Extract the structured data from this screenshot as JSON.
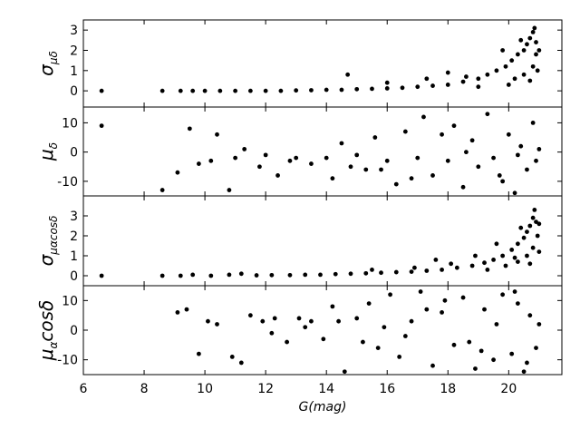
{
  "chart_data": [
    {
      "type": "scatter",
      "ylabel": [
        {
          "text": "σ"
        },
        {
          "text": "μδ",
          "sub": true
        }
      ],
      "color": "#000000",
      "xlim": [
        6,
        21.75
      ],
      "ylim": [
        -0.8,
        3.5
      ],
      "yticks": [
        0,
        1,
        2,
        3
      ],
      "x": [
        6.6,
        8.6,
        9.2,
        9.6,
        10,
        10.5,
        11,
        11.5,
        12,
        12.5,
        13,
        13.5,
        14,
        14.5,
        15,
        15.5,
        16,
        16.5,
        17,
        17.5,
        18,
        18.5,
        19,
        19.3,
        19.6,
        19.9,
        20.1,
        20.3,
        20.5,
        20.6,
        20.7,
        20.8,
        20.85,
        20.9,
        20.9,
        20.8,
        20.5,
        20.2,
        18.6,
        14.7,
        17.3,
        19.8,
        20.4,
        20.95,
        20,
        19,
        16,
        18,
        21,
        20.7
      ],
      "values": [
        0,
        0,
        0,
        0,
        0,
        0,
        0,
        0,
        0,
        0,
        0.02,
        0.03,
        0.05,
        0.05,
        0.08,
        0.1,
        0.12,
        0.15,
        0.2,
        0.25,
        0.3,
        0.45,
        0.6,
        0.8,
        1.0,
        1.2,
        1.5,
        1.8,
        2.0,
        2.3,
        2.6,
        2.9,
        3.1,
        2.4,
        1.8,
        1.2,
        0.8,
        0.6,
        0.7,
        0.8,
        0.6,
        2.0,
        2.5,
        1.0,
        0.3,
        0.2,
        0.4,
        0.9,
        2.0,
        0.5
      ]
    },
    {
      "type": "scatter",
      "ylabel": [
        {
          "text": "μ"
        },
        {
          "text": "δ",
          "sub": true
        }
      ],
      "color": "#000000",
      "xlim": [
        6,
        21.75
      ],
      "ylim": [
        -15,
        15.4
      ],
      "yticks": [
        -10,
        0,
        10
      ],
      "x": [
        6.6,
        8.6,
        9.1,
        9.5,
        9.8,
        10.2,
        10.4,
        10.8,
        11,
        11.3,
        11.8,
        12,
        12.4,
        12.8,
        13,
        13.5,
        14,
        14.2,
        14.5,
        15,
        15.3,
        15.6,
        16,
        16.3,
        16.6,
        17,
        17.2,
        17.5,
        18,
        18.2,
        18.5,
        18.8,
        19,
        19.3,
        19.5,
        19.8,
        20,
        20.2,
        20.4,
        20.6,
        20.8,
        20.9,
        21,
        19.7,
        17.8,
        16.8,
        15.8,
        14.8,
        18.6,
        20.3
      ],
      "values": [
        9,
        -13,
        -7,
        8,
        -4,
        -3,
        6,
        -13,
        -2,
        1,
        -5,
        -1,
        -8,
        -3,
        -2,
        -4,
        -2,
        -9,
        3,
        -1,
        -6,
        5,
        -3,
        -11,
        7,
        -2,
        12,
        -8,
        -3,
        9,
        -12,
        4,
        -5,
        13,
        -2,
        -10,
        6,
        -14,
        2,
        -6,
        10,
        -3,
        1,
        -8,
        6,
        -9,
        -6,
        -5,
        0,
        -1
      ]
    },
    {
      "type": "scatter",
      "ylabel": [
        {
          "text": "σ"
        },
        {
          "text": "μαcosδ",
          "sub": true
        }
      ],
      "color": "#000000",
      "xlim": [
        6,
        21.75
      ],
      "ylim": [
        -0.5,
        4
      ],
      "yticks": [
        0,
        1,
        2,
        3
      ],
      "x": [
        6.6,
        8.6,
        9.2,
        9.6,
        10.2,
        10.8,
        11.2,
        11.7,
        12.2,
        12.8,
        13.3,
        13.8,
        14.3,
        14.8,
        15.3,
        15.8,
        16.3,
        16.8,
        17.3,
        17.8,
        18.3,
        18.8,
        19.2,
        19.5,
        19.8,
        20.1,
        20.3,
        20.5,
        20.6,
        20.7,
        20.8,
        20.85,
        20.9,
        20.95,
        20.8,
        20.6,
        20.3,
        19.9,
        18.9,
        16.9,
        19.6,
        20.4,
        21,
        20.2,
        18.1,
        15.5,
        17.6,
        19.3,
        20.7,
        21
      ],
      "values": [
        0,
        0,
        0,
        0.05,
        0,
        0.05,
        0.1,
        0.02,
        0.03,
        0.03,
        0.05,
        0.05,
        0.08,
        0.1,
        0.12,
        0.15,
        0.18,
        0.2,
        0.25,
        0.3,
        0.4,
        0.5,
        0.65,
        0.8,
        1.0,
        1.3,
        1.6,
        1.9,
        2.2,
        2.5,
        2.9,
        3.3,
        2.7,
        2.0,
        1.4,
        1.0,
        0.7,
        0.5,
        1.0,
        0.4,
        1.6,
        2.4,
        1.2,
        0.9,
        0.6,
        0.3,
        0.8,
        0.3,
        0.6,
        2.6
      ]
    },
    {
      "type": "scatter",
      "ylabel": [
        {
          "text": "μ"
        },
        {
          "text": "α",
          "sub": true
        },
        {
          "text": "cosδ"
        }
      ],
      "color": "#000000",
      "xlim": [
        6,
        21.75
      ],
      "ylim": [
        -15,
        15
      ],
      "yticks": [
        -10,
        0,
        10
      ],
      "xlabel": "G(mag)",
      "xticks": [
        6,
        8,
        10,
        12,
        14,
        16,
        18,
        20
      ],
      "x": [
        9.1,
        9.4,
        9.8,
        10.1,
        10.4,
        10.9,
        11.2,
        11.5,
        11.9,
        12.3,
        12.7,
        13.1,
        13.5,
        13.9,
        14.2,
        14.6,
        15,
        15.4,
        15.7,
        16.1,
        16.4,
        16.8,
        17.1,
        17.5,
        17.8,
        18.2,
        18.5,
        18.9,
        19.2,
        19.5,
        19.8,
        20.1,
        20.3,
        20.5,
        20.7,
        20.9,
        21,
        19.6,
        18.7,
        17.3,
        16.6,
        15.9,
        14.4,
        13.3,
        12.2,
        20.2,
        19.1,
        17.9,
        20.6,
        15.2
      ],
      "values": [
        6,
        7,
        -8,
        3,
        2,
        -9,
        -11,
        5,
        3,
        4,
        -4,
        4,
        3,
        -3,
        8,
        -14,
        4,
        9,
        -6,
        12,
        -9,
        3,
        13,
        -12,
        6,
        -5,
        11,
        -13,
        7,
        -10,
        12,
        -8,
        9,
        -14,
        5,
        -6,
        2,
        2,
        -4,
        7,
        -2,
        1,
        3,
        1,
        -1,
        13,
        -7,
        10,
        -11,
        -4
      ]
    }
  ]
}
